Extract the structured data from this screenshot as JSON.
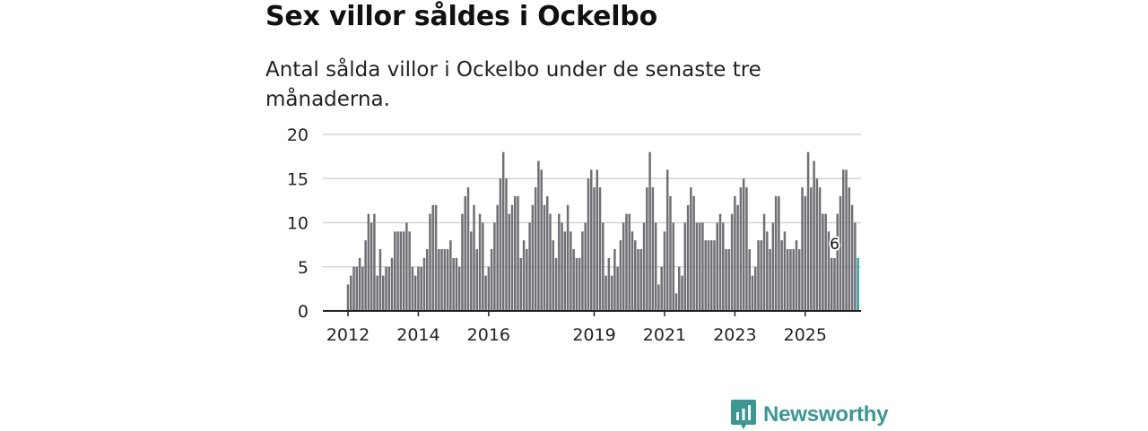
{
  "header": {
    "title": "Sex villor såldes i Ockelbo",
    "subtitle": "Antal sålda villor i Ockelbo under de senaste tre månaderna."
  },
  "brand": {
    "name": "Newsworthy"
  },
  "colors": {
    "bar": "#6f6f75",
    "highlight": "#2aa19b",
    "grid": "#d4d4d4",
    "axis": "#222222",
    "brand": "#3a9892"
  },
  "chart_data": {
    "type": "bar",
    "title": "Sex villor såldes i Ockelbo",
    "subtitle": "Antal sålda villor i Ockelbo under de senaste tre månaderna.",
    "xlabel": "",
    "ylabel": "",
    "ylim": [
      0,
      20
    ],
    "yticks": [
      0,
      5,
      10,
      15,
      20
    ],
    "grid": true,
    "start": "2012-01",
    "x_tick_labels": [
      {
        "label": "2012",
        "index": 0
      },
      {
        "label": "2014",
        "index": 24
      },
      {
        "label": "2016",
        "index": 48
      },
      {
        "label": "2019",
        "index": 84
      },
      {
        "label": "2021",
        "index": 108
      },
      {
        "label": "2023",
        "index": 132
      },
      {
        "label": "2025",
        "index": 156
      }
    ],
    "values": [
      3,
      4,
      5,
      5,
      6,
      5,
      8,
      11,
      10,
      11,
      4,
      7,
      4,
      5,
      5,
      6,
      9,
      9,
      9,
      9,
      10,
      9,
      5,
      4,
      5,
      5,
      6,
      7,
      11,
      12,
      12,
      7,
      7,
      7,
      7,
      8,
      6,
      6,
      5,
      11,
      13,
      14,
      9,
      12,
      7,
      11,
      10,
      4,
      5,
      7,
      10,
      12,
      15,
      18,
      15,
      11,
      12,
      13,
      13,
      6,
      8,
      7,
      10,
      12,
      14,
      17,
      16,
      12,
      13,
      11,
      8,
      6,
      11,
      10,
      9,
      12,
      9,
      7,
      6,
      6,
      9,
      10,
      15,
      16,
      14,
      16,
      14,
      10,
      4,
      6,
      4,
      7,
      5,
      8,
      10,
      11,
      11,
      9,
      8,
      7,
      7,
      10,
      14,
      18,
      14,
      10,
      3,
      5,
      9,
      16,
      13,
      10,
      2,
      5,
      4,
      10,
      12,
      14,
      13,
      10,
      10,
      10,
      8,
      8,
      8,
      8,
      10,
      11,
      10,
      7,
      7,
      11,
      13,
      12,
      14,
      15,
      14,
      7,
      4,
      5,
      8,
      8,
      11,
      9,
      7,
      10,
      13,
      13,
      8,
      9,
      7,
      7,
      7,
      8,
      7,
      14,
      13,
      18,
      14,
      17,
      15,
      14,
      11,
      11,
      9,
      6,
      6,
      11,
      13,
      16,
      16,
      14,
      12,
      10,
      6
    ],
    "highlight_last": true,
    "annotations": [
      {
        "index": 166,
        "text": "6"
      }
    ]
  }
}
